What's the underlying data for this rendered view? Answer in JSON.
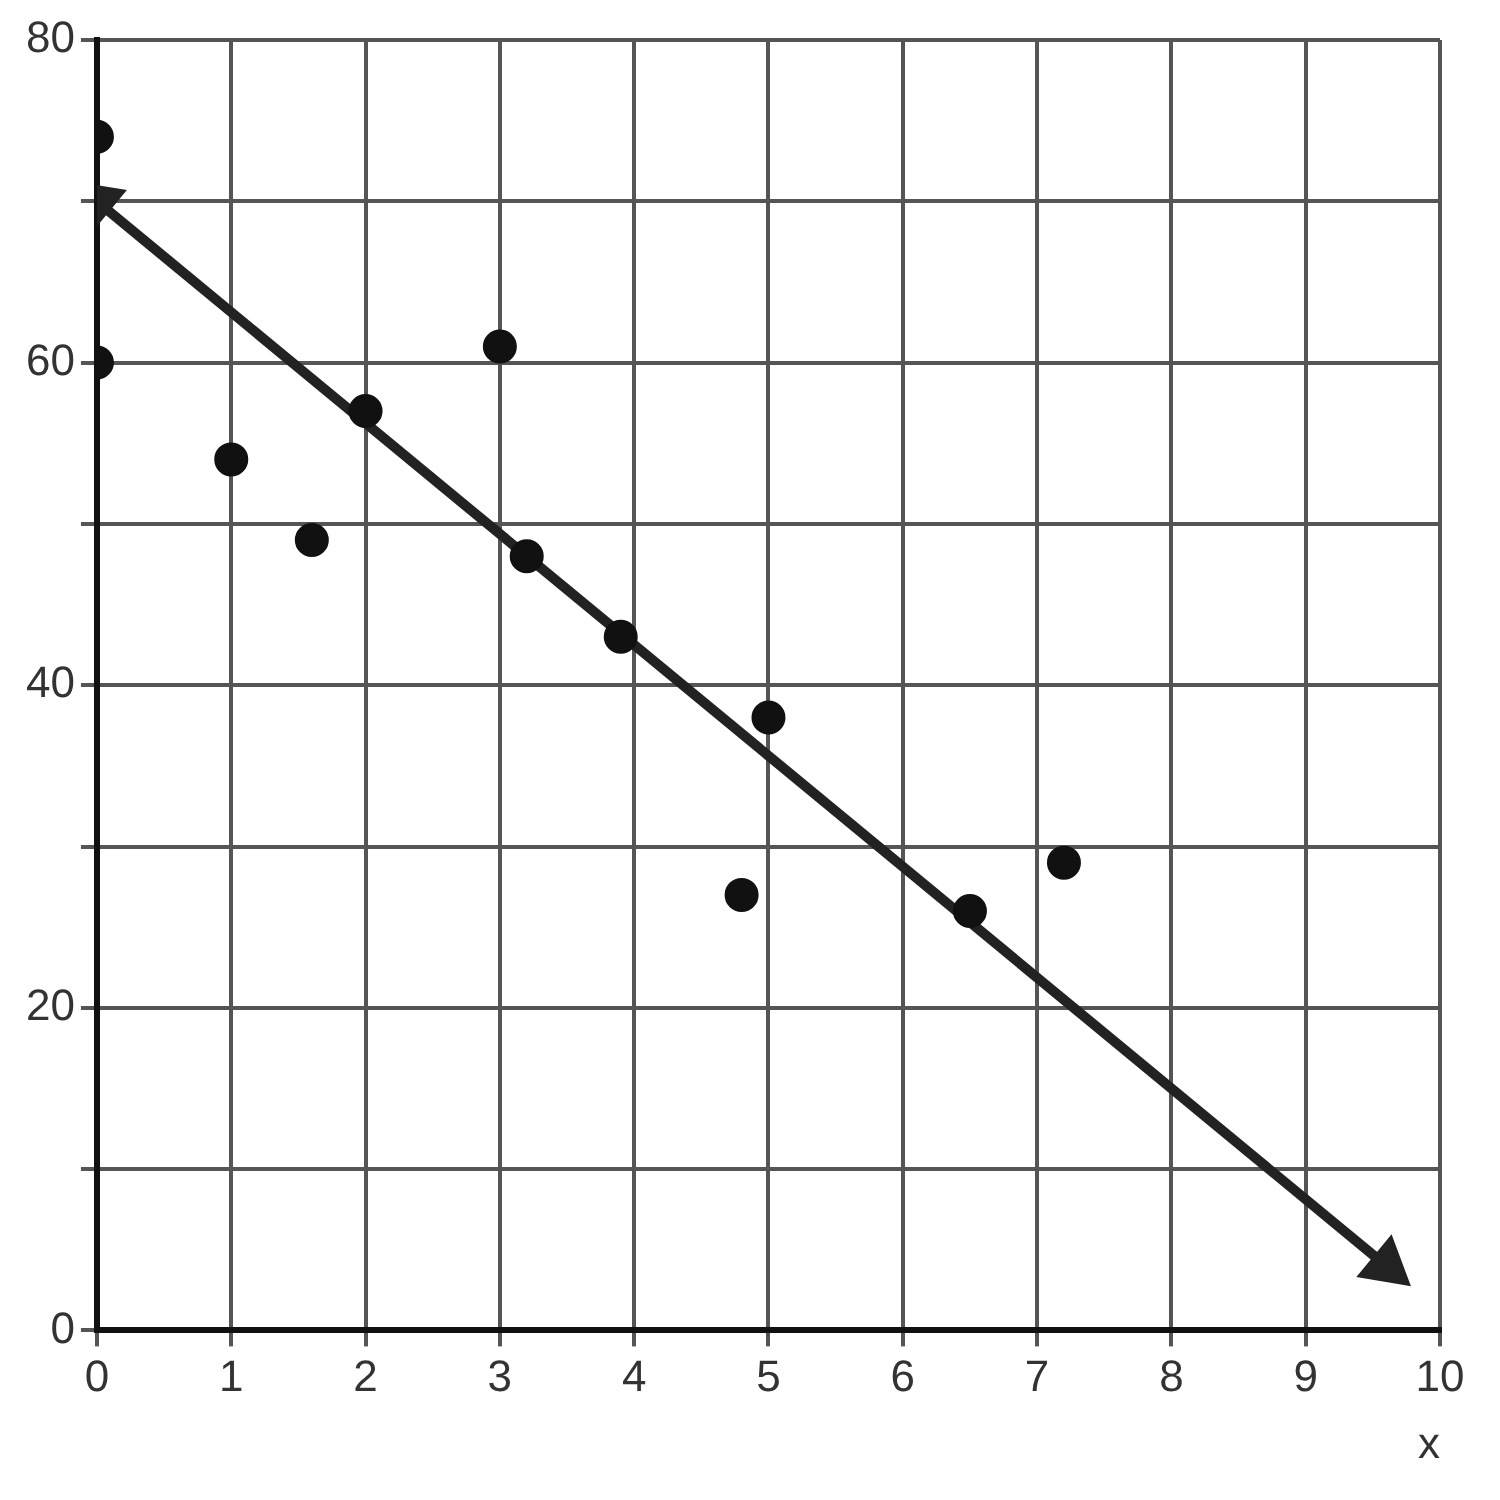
{
  "chart_data": {
    "type": "scatter",
    "xlabel": "x",
    "xlim": [
      0,
      10
    ],
    "ylim": [
      0,
      80
    ],
    "xticks": [
      0,
      1,
      2,
      3,
      4,
      5,
      6,
      7,
      8,
      9,
      10
    ],
    "yticks": [
      0,
      {
        "value": 10,
        "label": null
      },
      20,
      {
        "value": 30,
        "label": null
      },
      40,
      {
        "value": 50,
        "label": null
      },
      60,
      {
        "value": 70,
        "label": null
      },
      80
    ],
    "grid": true,
    "legend": false,
    "series": [
      {
        "marker": "circle",
        "color": "#111111",
        "x": [
          0,
          0,
          1,
          1.6,
          2,
          3,
          3.2,
          3.9,
          4.8,
          5,
          6.5,
          7.2
        ],
        "values": [
          74,
          60,
          54,
          49,
          57,
          61,
          48,
          43,
          27,
          38,
          26,
          29
        ]
      },
      {
        "type": "line",
        "marker": "triangle",
        "color": "#222222",
        "x": [
          0,
          9.6
        ],
        "values": [
          70,
          4
        ]
      }
    ]
  }
}
